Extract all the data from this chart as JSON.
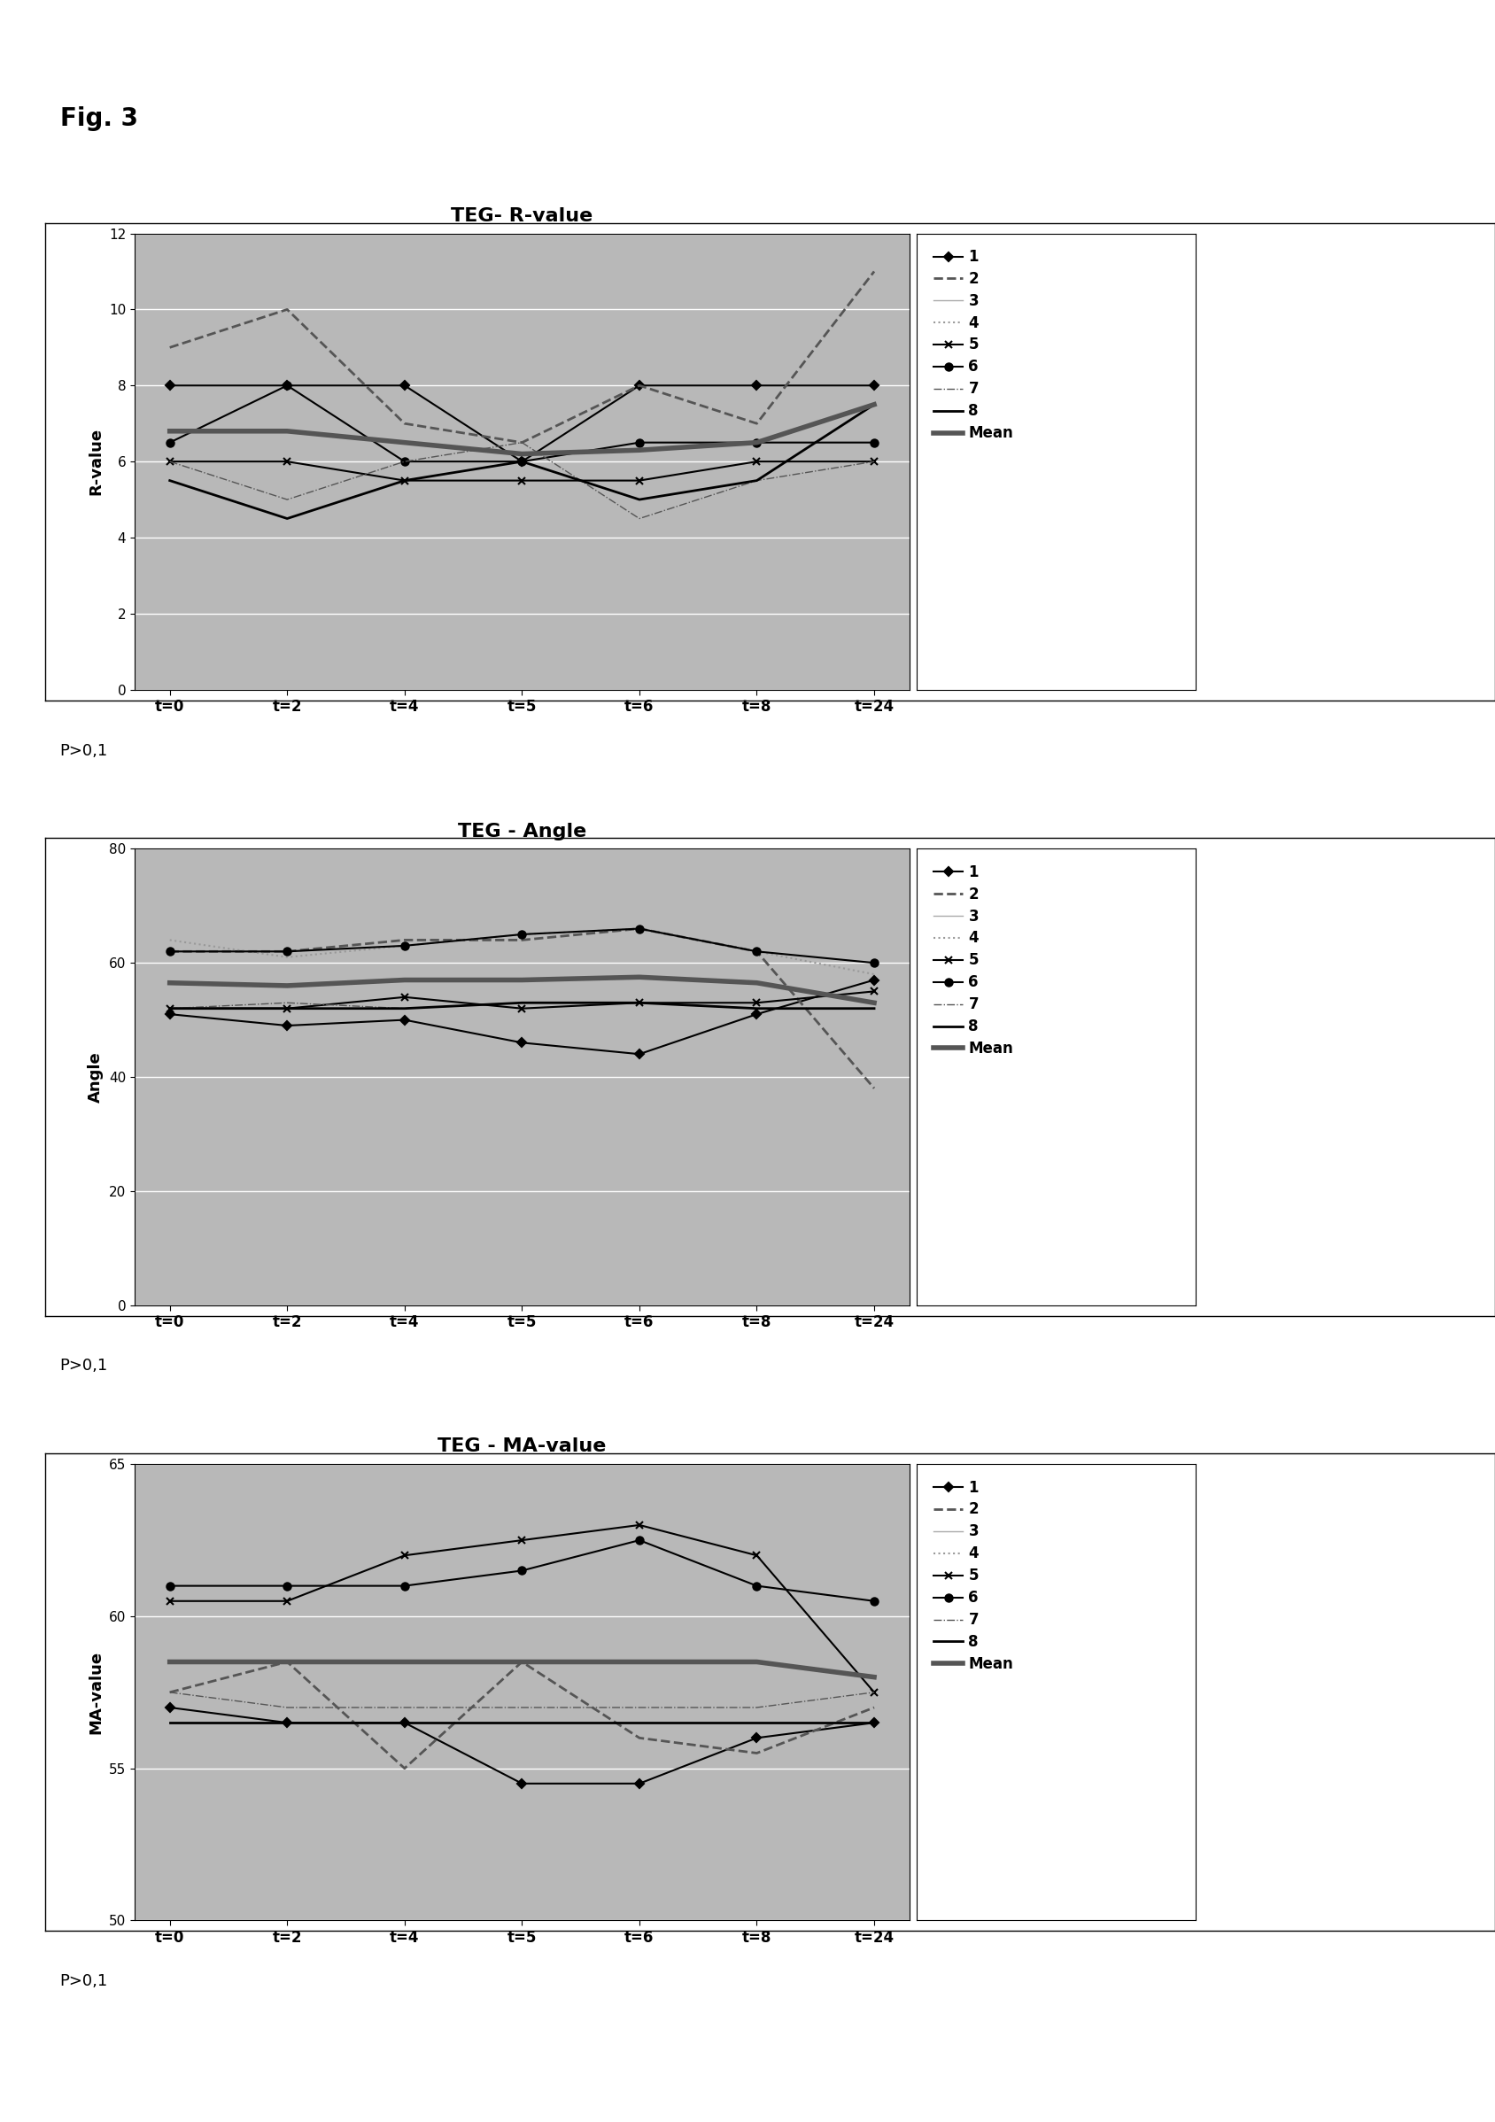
{
  "fig_label": "Fig. 3",
  "xtick_labels": [
    "t=0",
    "t=2",
    "t=4",
    "t=5",
    "t=6",
    "t=8",
    "t=24"
  ],
  "x_positions": [
    0,
    1,
    2,
    3,
    4,
    5,
    6
  ],
  "chart1": {
    "title": "TEG- R-value",
    "ylabel": "R-value",
    "ylim": [
      0,
      12
    ],
    "yticks": [
      0,
      2,
      4,
      6,
      8,
      10,
      12
    ],
    "series": {
      "1": [
        8.0,
        8.0,
        8.0,
        6.0,
        8.0,
        8.0,
        8.0
      ],
      "2": [
        9.0,
        10.0,
        7.0,
        6.5,
        8.0,
        7.0,
        11.0
      ],
      "3": [
        null,
        null,
        null,
        null,
        null,
        null,
        null
      ],
      "4": [
        null,
        null,
        null,
        null,
        null,
        null,
        null
      ],
      "5": [
        6.0,
        6.0,
        5.5,
        5.5,
        5.5,
        6.0,
        6.0
      ],
      "6": [
        6.5,
        8.0,
        6.0,
        6.0,
        6.5,
        6.5,
        6.5
      ],
      "7": [
        6.0,
        5.0,
        6.0,
        6.5,
        4.5,
        5.5,
        6.0
      ],
      "8": [
        5.5,
        4.5,
        5.5,
        6.0,
        5.0,
        5.5,
        7.5
      ],
      "Mean": [
        6.8,
        6.8,
        6.5,
        6.2,
        6.3,
        6.5,
        7.5
      ]
    }
  },
  "chart2": {
    "title": "TEG - Angle",
    "ylabel": "Angle",
    "ylim": [
      0,
      80
    ],
    "yticks": [
      0,
      20,
      40,
      60,
      80
    ],
    "series": {
      "1": [
        51.0,
        49.0,
        50.0,
        46.0,
        44.0,
        51.0,
        57.0
      ],
      "2": [
        62.0,
        62.0,
        64.0,
        64.0,
        66.0,
        62.0,
        38.0
      ],
      "3": [
        null,
        null,
        null,
        null,
        null,
        null,
        null
      ],
      "4": [
        64.0,
        61.0,
        63.0,
        65.0,
        66.0,
        62.0,
        58.0
      ],
      "5": [
        52.0,
        52.0,
        54.0,
        52.0,
        53.0,
        53.0,
        55.0
      ],
      "6": [
        62.0,
        62.0,
        63.0,
        65.0,
        66.0,
        62.0,
        60.0
      ],
      "7": [
        52.0,
        53.0,
        52.0,
        53.0,
        53.0,
        52.0,
        52.0
      ],
      "8": [
        52.0,
        52.0,
        52.0,
        53.0,
        53.0,
        52.0,
        52.0
      ],
      "Mean": [
        56.5,
        56.0,
        57.0,
        57.0,
        57.5,
        56.5,
        53.0
      ]
    }
  },
  "chart3": {
    "title": "TEG - MA-value",
    "ylabel": "MA-value",
    "ylim": [
      50,
      65
    ],
    "yticks": [
      50,
      55,
      60,
      65
    ],
    "series": {
      "1": [
        57.0,
        56.5,
        56.5,
        54.5,
        54.5,
        56.0,
        56.5
      ],
      "2": [
        57.5,
        58.5,
        55.0,
        58.5,
        56.0,
        55.5,
        57.0
      ],
      "3": [
        null,
        null,
        null,
        null,
        null,
        null,
        null
      ],
      "4": [
        null,
        null,
        null,
        null,
        null,
        null,
        null
      ],
      "5": [
        60.5,
        60.5,
        62.0,
        62.5,
        63.0,
        62.0,
        57.5
      ],
      "6": [
        61.0,
        61.0,
        61.0,
        61.5,
        62.5,
        61.0,
        60.5
      ],
      "7": [
        57.5,
        57.0,
        57.0,
        57.0,
        57.0,
        57.0,
        57.5
      ],
      "8": [
        56.5,
        56.5,
        56.5,
        56.5,
        56.5,
        56.5,
        56.5
      ],
      "Mean": [
        58.5,
        58.5,
        58.5,
        58.5,
        58.5,
        58.5,
        58.0
      ]
    }
  },
  "p_value_text": "P>0,1",
  "background_color": "#ffffff",
  "plot_bg_stipple": "#bbbbbb",
  "grid_color": "#ffffff",
  "series_order": [
    "1",
    "2",
    "3",
    "4",
    "5",
    "6",
    "7",
    "8",
    "Mean"
  ],
  "series_styles": {
    "1": {
      "color": "#000000",
      "linestyle": "-",
      "marker": "D",
      "ms": 5,
      "lw": 1.5,
      "mew": 1.5
    },
    "2": {
      "color": "#555555",
      "linestyle": "--",
      "marker": "None",
      "ms": 0,
      "lw": 2.0,
      "mew": 1.0
    },
    "3": {
      "color": "#aaaaaa",
      "linestyle": "-",
      "marker": "None",
      "ms": 0,
      "lw": 1.0,
      "mew": 1.0
    },
    "4": {
      "color": "#999999",
      "linestyle": ":",
      "marker": "None",
      "ms": 0,
      "lw": 1.5,
      "mew": 1.0
    },
    "5": {
      "color": "#000000",
      "linestyle": "-",
      "marker": "x",
      "ms": 6,
      "lw": 1.5,
      "mew": 1.5
    },
    "6": {
      "color": "#000000",
      "linestyle": "-",
      "marker": "o",
      "ms": 6,
      "lw": 1.5,
      "mew": 1.5
    },
    "7": {
      "color": "#555555",
      "linestyle": "-.",
      "marker": "None",
      "ms": 0,
      "lw": 1.0,
      "mew": 1.0
    },
    "8": {
      "color": "#000000",
      "linestyle": "-",
      "marker": "None",
      "ms": 0,
      "lw": 2.0,
      "mew": 1.0
    },
    "Mean": {
      "color": "#555555",
      "linestyle": "-",
      "marker": "None",
      "ms": 0,
      "lw": 4.0,
      "mew": 1.0
    }
  },
  "legend_keys": [
    "1",
    "2",
    "3",
    "4",
    "5",
    "6",
    "7",
    "8",
    "Mean"
  ]
}
